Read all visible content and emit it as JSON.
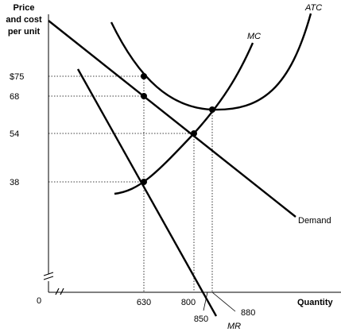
{
  "chart_data": {
    "type": "line",
    "title": "",
    "ylabel": "Price and cost per unit",
    "xlabel": "Quantity",
    "y_axis_lines": [
      "Price",
      "and cost",
      "per unit"
    ],
    "origin_label": "0",
    "y_ticks": [
      {
        "value": 75,
        "label": "$75"
      },
      {
        "value": 68,
        "label": "68"
      },
      {
        "value": 54,
        "label": "54"
      },
      {
        "value": 38,
        "label": "38"
      }
    ],
    "x_ticks": [
      {
        "value": 630,
        "label": "630"
      },
      {
        "value": 800,
        "label": "800"
      },
      {
        "value": 850,
        "label": "850"
      },
      {
        "value": 880,
        "label": "880"
      }
    ],
    "axis_break": true,
    "grid": false,
    "series": [
      {
        "name": "Demand",
        "points": [
          [
            630,
            68
          ],
          [
            800,
            54
          ]
        ]
      },
      {
        "name": "MR",
        "points": [
          [
            630,
            38
          ],
          [
            850,
            0
          ]
        ]
      },
      {
        "name": "MC",
        "points": [
          [
            630,
            38
          ],
          [
            800,
            54
          ],
          [
            880,
            62
          ]
        ]
      },
      {
        "name": "ATC",
        "points": [
          [
            630,
            75
          ],
          [
            880,
            62
          ]
        ]
      }
    ],
    "highlighted_points": [
      {
        "x": 630,
        "y": 75
      },
      {
        "x": 630,
        "y": 68
      },
      {
        "x": 630,
        "y": 38
      },
      {
        "x": 800,
        "y": 54
      },
      {
        "x": 880,
        "y": 62
      }
    ]
  }
}
